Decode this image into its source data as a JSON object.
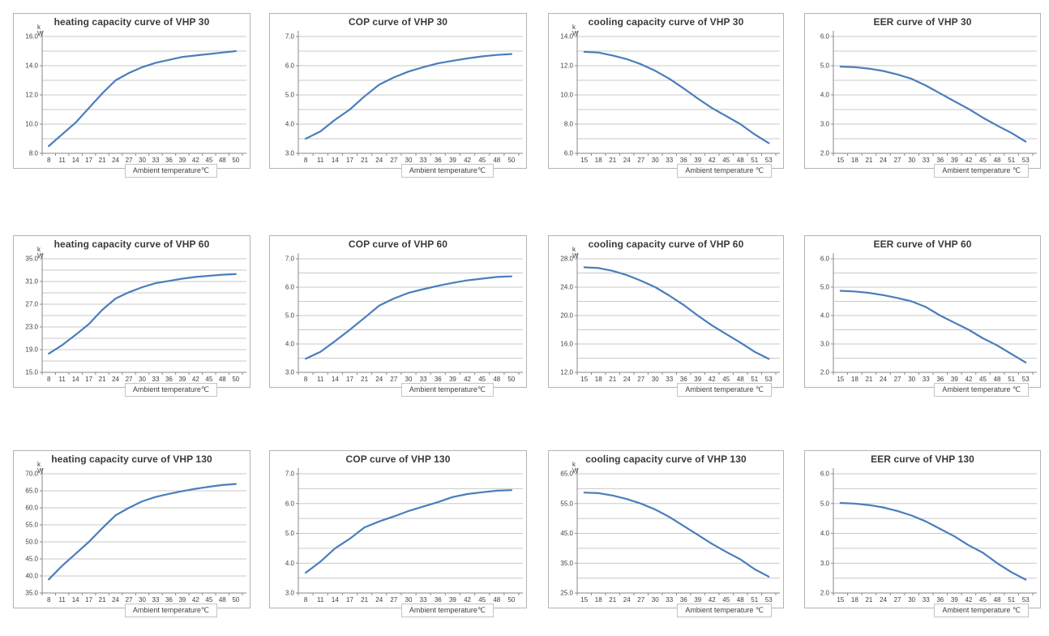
{
  "colors": {
    "line": "#4a7ebb",
    "grid": "#c9c9c9",
    "axis": "#8a8a8a",
    "tick_text": "#404040",
    "title_text": "#3a3a3a",
    "panel_border": "#b3b3b3"
  },
  "chart_layout": {
    "legend": "none",
    "grid": "horizontal",
    "x_axis_type": "category"
  },
  "chart_data": [
    {
      "type": "line",
      "title": "heating capacity curve of VHP 30",
      "xlabel": "Ambient temperature℃",
      "ylabel": "k\nW",
      "x": [
        8,
        11,
        14,
        17,
        21,
        24,
        27,
        30,
        33,
        36,
        39,
        42,
        45,
        48,
        50
      ],
      "values": [
        8.5,
        9.3,
        10.1,
        11.1,
        12.1,
        13.0,
        13.5,
        13.9,
        14.2,
        14.4,
        14.6,
        14.7,
        14.8,
        14.9,
        15.0
      ],
      "ylim": [
        8.0,
        16.0
      ],
      "ytick_step": 2.0,
      "grid_step": 1.0
    },
    {
      "type": "line",
      "title": "COP curve of VHP 30",
      "xlabel": "Ambient temperature℃",
      "ylabel": "",
      "x": [
        8,
        11,
        14,
        17,
        21,
        24,
        27,
        30,
        33,
        36,
        39,
        42,
        45,
        48,
        50
      ],
      "values": [
        3.5,
        3.75,
        4.15,
        4.5,
        4.95,
        5.35,
        5.6,
        5.8,
        5.95,
        6.08,
        6.17,
        6.25,
        6.32,
        6.37,
        6.4
      ],
      "ylim": [
        3.0,
        7.0
      ],
      "ytick_step": 1.0,
      "grid_step": 0.5
    },
    {
      "type": "line",
      "title": "cooling capacity curve of VHP 30",
      "xlabel": "Ambient temperature ℃",
      "ylabel": "k\nW",
      "x": [
        15,
        18,
        21,
        24,
        27,
        30,
        33,
        36,
        39,
        42,
        45,
        48,
        51,
        53
      ],
      "values": [
        12.95,
        12.9,
        12.7,
        12.45,
        12.1,
        11.65,
        11.1,
        10.45,
        9.75,
        9.1,
        8.55,
        8.0,
        7.3,
        6.7
      ],
      "ylim": [
        6.0,
        14.0
      ],
      "ytick_step": 2.0,
      "grid_step": 1.0
    },
    {
      "type": "line",
      "title": "EER curve of VHP 30",
      "xlabel": "Ambient temperature ℃",
      "ylabel": "",
      "x": [
        15,
        18,
        21,
        24,
        27,
        30,
        33,
        36,
        39,
        42,
        45,
        48,
        51,
        53
      ],
      "values": [
        4.97,
        4.95,
        4.9,
        4.82,
        4.7,
        4.55,
        4.32,
        4.05,
        3.78,
        3.52,
        3.22,
        2.95,
        2.7,
        2.4
      ],
      "ylim": [
        2.0,
        6.0
      ],
      "ytick_step": 1.0,
      "grid_step": 0.5
    },
    {
      "type": "line",
      "title": "heating capacity curve of VHP 60",
      "xlabel": "Ambient temperature℃",
      "ylabel": "k\nW",
      "x": [
        8,
        11,
        14,
        17,
        21,
        24,
        27,
        30,
        33,
        36,
        39,
        42,
        45,
        48,
        50
      ],
      "values": [
        18.3,
        19.8,
        21.6,
        23.5,
        26.0,
        28.0,
        29.1,
        30.0,
        30.7,
        31.1,
        31.5,
        31.8,
        32.0,
        32.2,
        32.3
      ],
      "ylim": [
        15.0,
        35.0
      ],
      "ytick_step": 4.0,
      "grid_step": 2.0
    },
    {
      "type": "line",
      "title": "COP curve of VHP 60",
      "xlabel": "Ambient temperature℃",
      "ylabel": "",
      "x": [
        8,
        11,
        14,
        17,
        21,
        24,
        27,
        30,
        33,
        36,
        39,
        42,
        45,
        48,
        50
      ],
      "values": [
        3.48,
        3.72,
        4.1,
        4.5,
        4.92,
        5.35,
        5.6,
        5.8,
        5.93,
        6.05,
        6.15,
        6.24,
        6.3,
        6.36,
        6.38
      ],
      "ylim": [
        3.0,
        7.0
      ],
      "ytick_step": 1.0,
      "grid_step": 0.5
    },
    {
      "type": "line",
      "title": "cooling capacity curve of VHP 60",
      "xlabel": "Ambient temperature ℃",
      "ylabel": "k\nW",
      "x": [
        15,
        18,
        21,
        24,
        27,
        30,
        33,
        36,
        39,
        42,
        45,
        48,
        51,
        53
      ],
      "values": [
        26.8,
        26.7,
        26.3,
        25.7,
        24.9,
        24.0,
        22.8,
        21.5,
        20.0,
        18.6,
        17.4,
        16.2,
        14.9,
        13.9
      ],
      "ylim": [
        12.0,
        28.0
      ],
      "ytick_step": 4.0,
      "grid_step": 2.0
    },
    {
      "type": "line",
      "title": "EER curve of VHP 60",
      "xlabel": "Ambient temperature ℃",
      "ylabel": "",
      "x": [
        15,
        18,
        21,
        24,
        27,
        30,
        33,
        36,
        39,
        42,
        45,
        48,
        51,
        53
      ],
      "values": [
        4.87,
        4.85,
        4.8,
        4.72,
        4.62,
        4.5,
        4.3,
        4.0,
        3.75,
        3.5,
        3.2,
        2.95,
        2.65,
        2.35
      ],
      "ylim": [
        2.0,
        6.0
      ],
      "ytick_step": 1.0,
      "grid_step": 0.5
    },
    {
      "type": "line",
      "title": "heating capacity curve of VHP 130",
      "xlabel": "Ambient temperature℃",
      "ylabel": "k\nW",
      "x": [
        8,
        11,
        14,
        17,
        21,
        24,
        27,
        30,
        33,
        36,
        39,
        42,
        45,
        48,
        50
      ],
      "values": [
        39.0,
        43.0,
        46.5,
        50.0,
        54.0,
        57.8,
        60.0,
        61.9,
        63.2,
        64.1,
        64.9,
        65.6,
        66.2,
        66.7,
        67.0
      ],
      "ylim": [
        35.0,
        70.0
      ],
      "ytick_step": 5.0,
      "grid_step": 5.0
    },
    {
      "type": "line",
      "title": "COP curve of VHP 130",
      "xlabel": "Ambient temperature℃",
      "ylabel": "",
      "x": [
        8,
        11,
        14,
        17,
        21,
        24,
        27,
        30,
        33,
        36,
        39,
        42,
        45,
        48,
        50
      ],
      "values": [
        3.68,
        4.05,
        4.5,
        4.82,
        5.2,
        5.4,
        5.57,
        5.75,
        5.9,
        6.05,
        6.22,
        6.32,
        6.38,
        6.43,
        6.45
      ],
      "ylim": [
        3.0,
        7.0
      ],
      "ytick_step": 1.0,
      "grid_step": 0.5
    },
    {
      "type": "line",
      "title": "cooling capacity curve of VHP 130",
      "xlabel": "Ambient temperature ℃",
      "ylabel": "k\nW",
      "x": [
        15,
        18,
        21,
        24,
        27,
        30,
        33,
        36,
        39,
        42,
        45,
        48,
        51,
        53
      ],
      "values": [
        58.7,
        58.5,
        57.7,
        56.5,
        55.0,
        53.0,
        50.5,
        47.5,
        44.5,
        41.5,
        38.8,
        36.3,
        33.0,
        30.5
      ],
      "ylim": [
        25.0,
        65.0
      ],
      "ytick_step": 10.0,
      "grid_step": 5.0
    },
    {
      "type": "line",
      "title": "EER curve of VHP 130",
      "xlabel": "Ambient temperature ℃",
      "ylabel": "",
      "x": [
        15,
        18,
        21,
        24,
        27,
        30,
        33,
        36,
        39,
        42,
        45,
        48,
        51,
        53
      ],
      "values": [
        5.02,
        5.0,
        4.95,
        4.87,
        4.75,
        4.6,
        4.4,
        4.15,
        3.9,
        3.6,
        3.35,
        3.0,
        2.7,
        2.45
      ],
      "ylim": [
        2.0,
        6.0
      ],
      "ytick_step": 1.0,
      "grid_step": 0.5
    }
  ]
}
